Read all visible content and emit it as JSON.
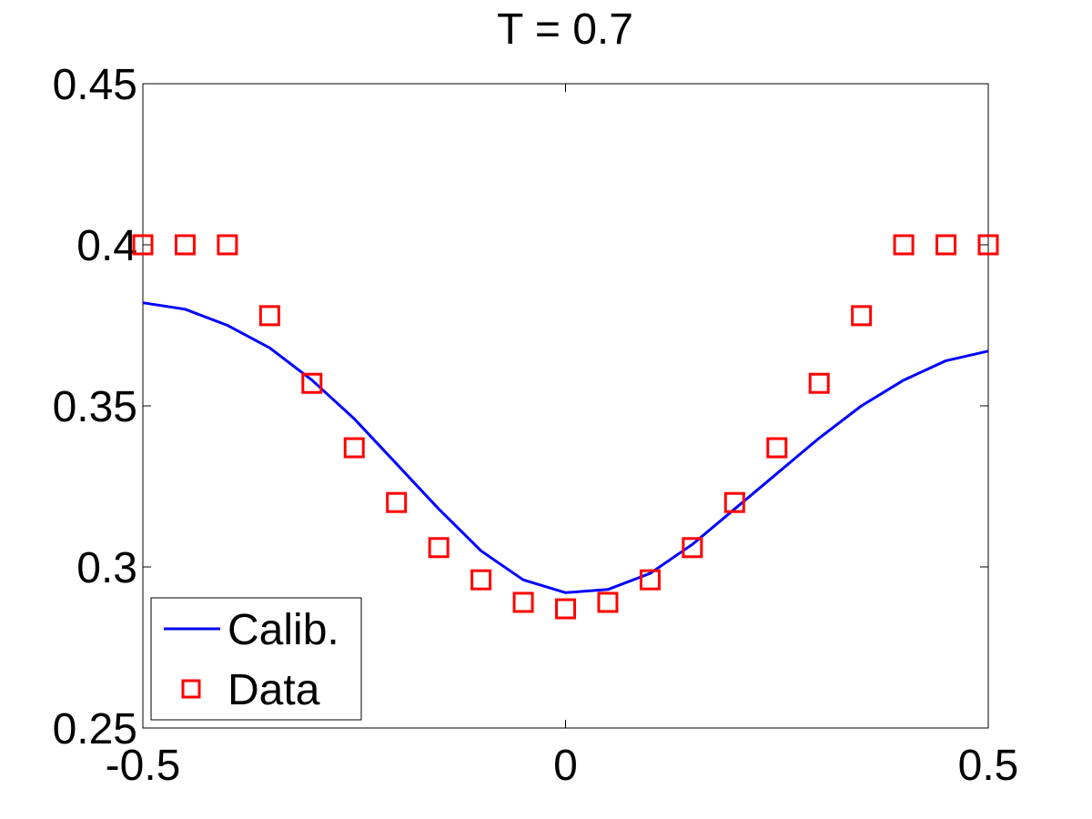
{
  "chart_data": {
    "type": "line",
    "title": "T = 0.7",
    "xlabel": "",
    "ylabel": "",
    "xlim": [
      -0.5,
      0.5
    ],
    "ylim": [
      0.25,
      0.45
    ],
    "xticks": [
      -0.5,
      0,
      0.5
    ],
    "xtick_labels": [
      "-0.5",
      "0",
      "0.5"
    ],
    "yticks": [
      0.25,
      0.3,
      0.35,
      0.4,
      0.45
    ],
    "ytick_labels": [
      "0.25",
      "0.3",
      "0.35",
      "0.4",
      "0.45"
    ],
    "grid": false,
    "legend_position": "bottom-left",
    "series": [
      {
        "name": "Calib.",
        "kind": "line",
        "color": "#0000ff",
        "x": [
          -0.5,
          -0.45,
          -0.4,
          -0.35,
          -0.3,
          -0.25,
          -0.2,
          -0.15,
          -0.1,
          -0.05,
          0,
          0.05,
          0.1,
          0.15,
          0.2,
          0.25,
          0.3,
          0.35,
          0.4,
          0.45,
          0.5
        ],
        "y": [
          0.382,
          0.38,
          0.375,
          0.368,
          0.358,
          0.346,
          0.332,
          0.318,
          0.305,
          0.296,
          0.292,
          0.293,
          0.298,
          0.307,
          0.318,
          0.329,
          0.34,
          0.35,
          0.358,
          0.364,
          0.367
        ]
      },
      {
        "name": "Data",
        "kind": "scatter",
        "marker": "square",
        "color": "#ff0000",
        "x": [
          -0.5,
          -0.45,
          -0.4,
          -0.35,
          -0.3,
          -0.25,
          -0.2,
          -0.15,
          -0.1,
          -0.05,
          0,
          0.05,
          0.1,
          0.15,
          0.2,
          0.25,
          0.3,
          0.35,
          0.4,
          0.45,
          0.5
        ],
        "y": [
          0.4,
          0.4,
          0.4,
          0.378,
          0.357,
          0.337,
          0.32,
          0.306,
          0.296,
          0.289,
          0.287,
          0.289,
          0.296,
          0.306,
          0.32,
          0.337,
          0.357,
          0.378,
          0.4,
          0.4,
          0.4
        ]
      }
    ]
  }
}
